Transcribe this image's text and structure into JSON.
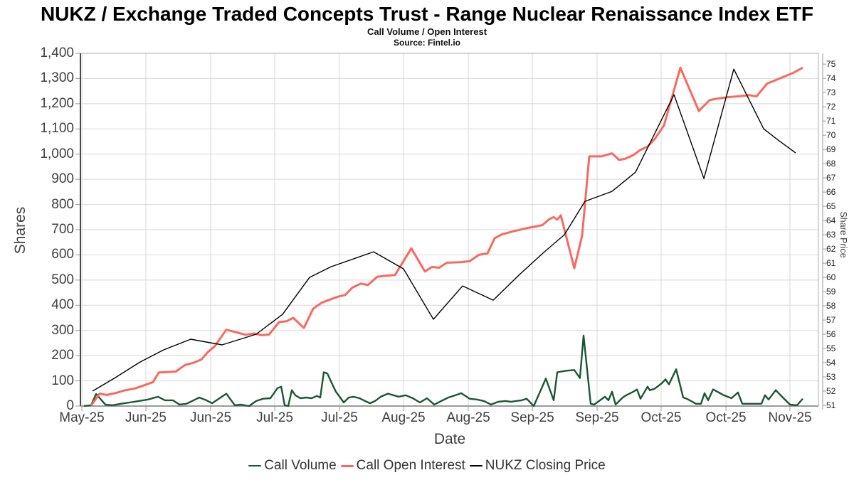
{
  "header": {
    "title": "NUKZ / Exchange Traded Concepts Trust - Range Nuclear Renaissance Index ETF",
    "subtitle": "Call Volume / Open Interest",
    "source": "Source: Fintel.io"
  },
  "colors": {
    "call_volume": "#1a5632",
    "call_open_interest": "#fa685f",
    "closing_price": "#000000",
    "grid": "#d8d8d8",
    "border": "#ababab",
    "spine": "#4a4a4a",
    "tick": "#9a9a9a",
    "label_text": "#3f3f3f"
  },
  "chart_data": {
    "type": "line",
    "title": "Call Volume / Open Interest",
    "x_axis": {
      "title": "Date",
      "ticks": [
        {
          "f": 0.0019,
          "label": "May-25"
        },
        {
          "f": 0.0887,
          "label": "Jun-25"
        },
        {
          "f": 0.1765,
          "label": "Jun-25"
        },
        {
          "f": 0.2633,
          "label": "Jul-25"
        },
        {
          "f": 0.351,
          "label": "Jul-25"
        },
        {
          "f": 0.4378,
          "label": "Aug-25"
        },
        {
          "f": 0.5256,
          "label": "Aug-25"
        },
        {
          "f": 0.6124,
          "label": "Sep-25"
        },
        {
          "f": 0.7001,
          "label": "Sep-25"
        },
        {
          "f": 0.7869,
          "label": "Oct-25"
        },
        {
          "f": 0.8747,
          "label": "Oct-25"
        },
        {
          "f": 0.9614,
          "label": "Nov-25"
        }
      ]
    },
    "y_left": {
      "title": "Shares",
      "min": 0,
      "max": 1400,
      "tick_step": 100
    },
    "y_right": {
      "title": "Share Price",
      "min": 50.95,
      "max": 75.76,
      "tick_min": 51,
      "tick_max": 75,
      "tick_step": 1
    },
    "series": [
      {
        "name": "Call Volume",
        "axis": "left",
        "color": "#1a5632",
        "width": 2.4,
        "points": [
          [
            0.0048,
            0
          ],
          [
            0.0145,
            3
          ],
          [
            0.0212,
            48
          ],
          [
            0.0338,
            6
          ],
          [
            0.0434,
            3
          ],
          [
            0.055,
            9
          ],
          [
            0.0665,
            14
          ],
          [
            0.0791,
            20
          ],
          [
            0.0916,
            26
          ],
          [
            0.1051,
            37
          ],
          [
            0.1147,
            23
          ],
          [
            0.1254,
            23
          ],
          [
            0.134,
            6
          ],
          [
            0.1437,
            9
          ],
          [
            0.1533,
            23
          ],
          [
            0.161,
            34
          ],
          [
            0.1707,
            23
          ],
          [
            0.1784,
            11
          ],
          [
            0.19,
            34
          ],
          [
            0.1977,
            49
          ],
          [
            0.2093,
            3
          ],
          [
            0.217,
            6
          ],
          [
            0.2285,
            0
          ],
          [
            0.2382,
            20
          ],
          [
            0.2478,
            29
          ],
          [
            0.2575,
            31
          ],
          [
            0.2671,
            71
          ],
          [
            0.272,
            77
          ],
          [
            0.2768,
            3
          ],
          [
            0.2816,
            0
          ],
          [
            0.2864,
            63
          ],
          [
            0.2912,
            43
          ],
          [
            0.298,
            31
          ],
          [
            0.3057,
            34
          ],
          [
            0.3134,
            31
          ],
          [
            0.3202,
            40
          ],
          [
            0.325,
            34
          ],
          [
            0.3298,
            134
          ],
          [
            0.3346,
            129
          ],
          [
            0.3414,
            86
          ],
          [
            0.3462,
            57
          ],
          [
            0.352,
            34
          ],
          [
            0.3568,
            14
          ],
          [
            0.3636,
            34
          ],
          [
            0.3703,
            37
          ],
          [
            0.378,
            31
          ],
          [
            0.3857,
            20
          ],
          [
            0.3925,
            11
          ],
          [
            0.3992,
            20
          ],
          [
            0.4069,
            37
          ],
          [
            0.4166,
            49
          ],
          [
            0.4243,
            43
          ],
          [
            0.4311,
            37
          ],
          [
            0.4407,
            43
          ],
          [
            0.4504,
            31
          ],
          [
            0.46,
            14
          ],
          [
            0.4696,
            31
          ],
          [
            0.4793,
            6
          ],
          [
            0.4889,
            20
          ],
          [
            0.4986,
            34
          ],
          [
            0.5082,
            43
          ],
          [
            0.516,
            51
          ],
          [
            0.5275,
            29
          ],
          [
            0.5371,
            26
          ],
          [
            0.5468,
            20
          ],
          [
            0.5564,
            6
          ],
          [
            0.5661,
            17
          ],
          [
            0.5757,
            20
          ],
          [
            0.5834,
            17
          ],
          [
            0.5902,
            20
          ],
          [
            0.5979,
            23
          ],
          [
            0.6046,
            29
          ],
          [
            0.6143,
            0
          ],
          [
            0.6307,
            109
          ],
          [
            0.6413,
            23
          ],
          [
            0.6461,
            134
          ],
          [
            0.6576,
            140
          ],
          [
            0.6692,
            143
          ],
          [
            0.6769,
            111
          ],
          [
            0.6818,
            280
          ],
          [
            0.6914,
            9
          ],
          [
            0.6962,
            6
          ],
          [
            0.7107,
            37
          ],
          [
            0.7155,
            23
          ],
          [
            0.7203,
            57
          ],
          [
            0.7252,
            6
          ],
          [
            0.7348,
            34
          ],
          [
            0.7396,
            43
          ],
          [
            0.7493,
            57
          ],
          [
            0.7541,
            66
          ],
          [
            0.7589,
            29
          ],
          [
            0.7686,
            77
          ],
          [
            0.7715,
            63
          ],
          [
            0.7782,
            69
          ],
          [
            0.7879,
            91
          ],
          [
            0.7927,
            106
          ],
          [
            0.7975,
            86
          ],
          [
            0.8072,
            146
          ],
          [
            0.8168,
            34
          ],
          [
            0.8216,
            29
          ],
          [
            0.8341,
            9
          ],
          [
            0.8409,
            9
          ],
          [
            0.8457,
            51
          ],
          [
            0.8505,
            23
          ],
          [
            0.8573,
            66
          ],
          [
            0.8717,
            43
          ],
          [
            0.8823,
            31
          ],
          [
            0.891,
            54
          ],
          [
            0.8968,
            9
          ],
          [
            0.9132,
            9
          ],
          [
            0.9228,
            9
          ],
          [
            0.9276,
            43
          ],
          [
            0.9325,
            26
          ],
          [
            0.9421,
            63
          ],
          [
            0.9518,
            34
          ],
          [
            0.9614,
            6
          ],
          [
            0.9711,
            3
          ],
          [
            0.9788,
            29
          ]
        ]
      },
      {
        "name": "Call Open Interest",
        "axis": "left",
        "color": "#fa685f",
        "width": 3,
        "points": [
          [
            0.0145,
            2
          ],
          [
            0.026,
            49
          ],
          [
            0.0357,
            44
          ],
          [
            0.0482,
            52
          ],
          [
            0.0598,
            62
          ],
          [
            0.0743,
            70
          ],
          [
            0.0887,
            85
          ],
          [
            0.0984,
            95
          ],
          [
            0.1061,
            133
          ],
          [
            0.1292,
            137
          ],
          [
            0.1418,
            163
          ],
          [
            0.1533,
            172
          ],
          [
            0.1639,
            185
          ],
          [
            0.1726,
            214
          ],
          [
            0.1822,
            238
          ],
          [
            0.1977,
            303
          ],
          [
            0.2093,
            294
          ],
          [
            0.2237,
            283
          ],
          [
            0.2353,
            288
          ],
          [
            0.2459,
            281
          ],
          [
            0.2556,
            284
          ],
          [
            0.2691,
            333
          ],
          [
            0.2797,
            337
          ],
          [
            0.2883,
            350
          ],
          [
            0.3028,
            310
          ],
          [
            0.3153,
            386
          ],
          [
            0.3269,
            410
          ],
          [
            0.3366,
            421
          ],
          [
            0.3491,
            434
          ],
          [
            0.3587,
            441
          ],
          [
            0.3684,
            470
          ],
          [
            0.3799,
            486
          ],
          [
            0.3896,
            480
          ],
          [
            0.4021,
            513
          ],
          [
            0.4137,
            517
          ],
          [
            0.4262,
            520
          ],
          [
            0.4484,
            626
          ],
          [
            0.4667,
            534
          ],
          [
            0.4764,
            552
          ],
          [
            0.486,
            549
          ],
          [
            0.4966,
            569
          ],
          [
            0.5149,
            571
          ],
          [
            0.5275,
            575
          ],
          [
            0.54,
            600
          ],
          [
            0.5516,
            606
          ],
          [
            0.5613,
            666
          ],
          [
            0.5709,
            681
          ],
          [
            0.5873,
            694
          ],
          [
            0.6046,
            706
          ],
          [
            0.6258,
            718
          ],
          [
            0.6355,
            742
          ],
          [
            0.6413,
            750
          ],
          [
            0.6461,
            740
          ],
          [
            0.6509,
            757
          ],
          [
            0.6692,
            547
          ],
          [
            0.6798,
            677
          ],
          [
            0.6895,
            991
          ],
          [
            0.7059,
            991
          ],
          [
            0.7203,
            1003
          ],
          [
            0.73,
            977
          ],
          [
            0.7377,
            981
          ],
          [
            0.7493,
            996
          ],
          [
            0.7589,
            1017
          ],
          [
            0.7686,
            1030
          ],
          [
            0.7782,
            1060
          ],
          [
            0.7907,
            1114
          ],
          [
            0.8129,
            1343
          ],
          [
            0.838,
            1171
          ],
          [
            0.8524,
            1214
          ],
          [
            0.8621,
            1220
          ],
          [
            0.8775,
            1226
          ],
          [
            0.8939,
            1230
          ],
          [
            0.9064,
            1234
          ],
          [
            0.9161,
            1229
          ],
          [
            0.9306,
            1280
          ],
          [
            0.9421,
            1294
          ],
          [
            0.9547,
            1309
          ],
          [
            0.9662,
            1323
          ],
          [
            0.9788,
            1343
          ]
        ]
      },
      {
        "name": "NUKZ Closing Price",
        "axis": "right",
        "color": "#000000",
        "width": 1.4,
        "points": [
          [
            0.0164,
            52.0
          ],
          [
            0.0473,
            52.95
          ],
          [
            0.081,
            54.05
          ],
          [
            0.1128,
            54.9
          ],
          [
            0.1495,
            55.65
          ],
          [
            0.1919,
            55.25
          ],
          [
            0.2382,
            56.0
          ],
          [
            0.2739,
            57.4
          ],
          [
            0.3105,
            60.0
          ],
          [
            0.3395,
            60.75
          ],
          [
            0.3973,
            61.8
          ],
          [
            0.4378,
            60.6
          ],
          [
            0.4783,
            57.05
          ],
          [
            0.5178,
            59.4
          ],
          [
            0.5593,
            58.4
          ],
          [
            0.595,
            60.2
          ],
          [
            0.6287,
            61.8
          ],
          [
            0.6557,
            63.0
          ],
          [
            0.6837,
            65.35
          ],
          [
            0.7203,
            66.05
          ],
          [
            0.7522,
            67.4
          ],
          [
            0.8043,
            72.85
          ],
          [
            0.8448,
            66.95
          ],
          [
            0.8853,
            74.65
          ],
          [
            0.9258,
            70.45
          ],
          [
            0.947,
            69.6
          ],
          [
            0.9692,
            68.75
          ]
        ]
      }
    ],
    "legend_position": "bottom"
  }
}
